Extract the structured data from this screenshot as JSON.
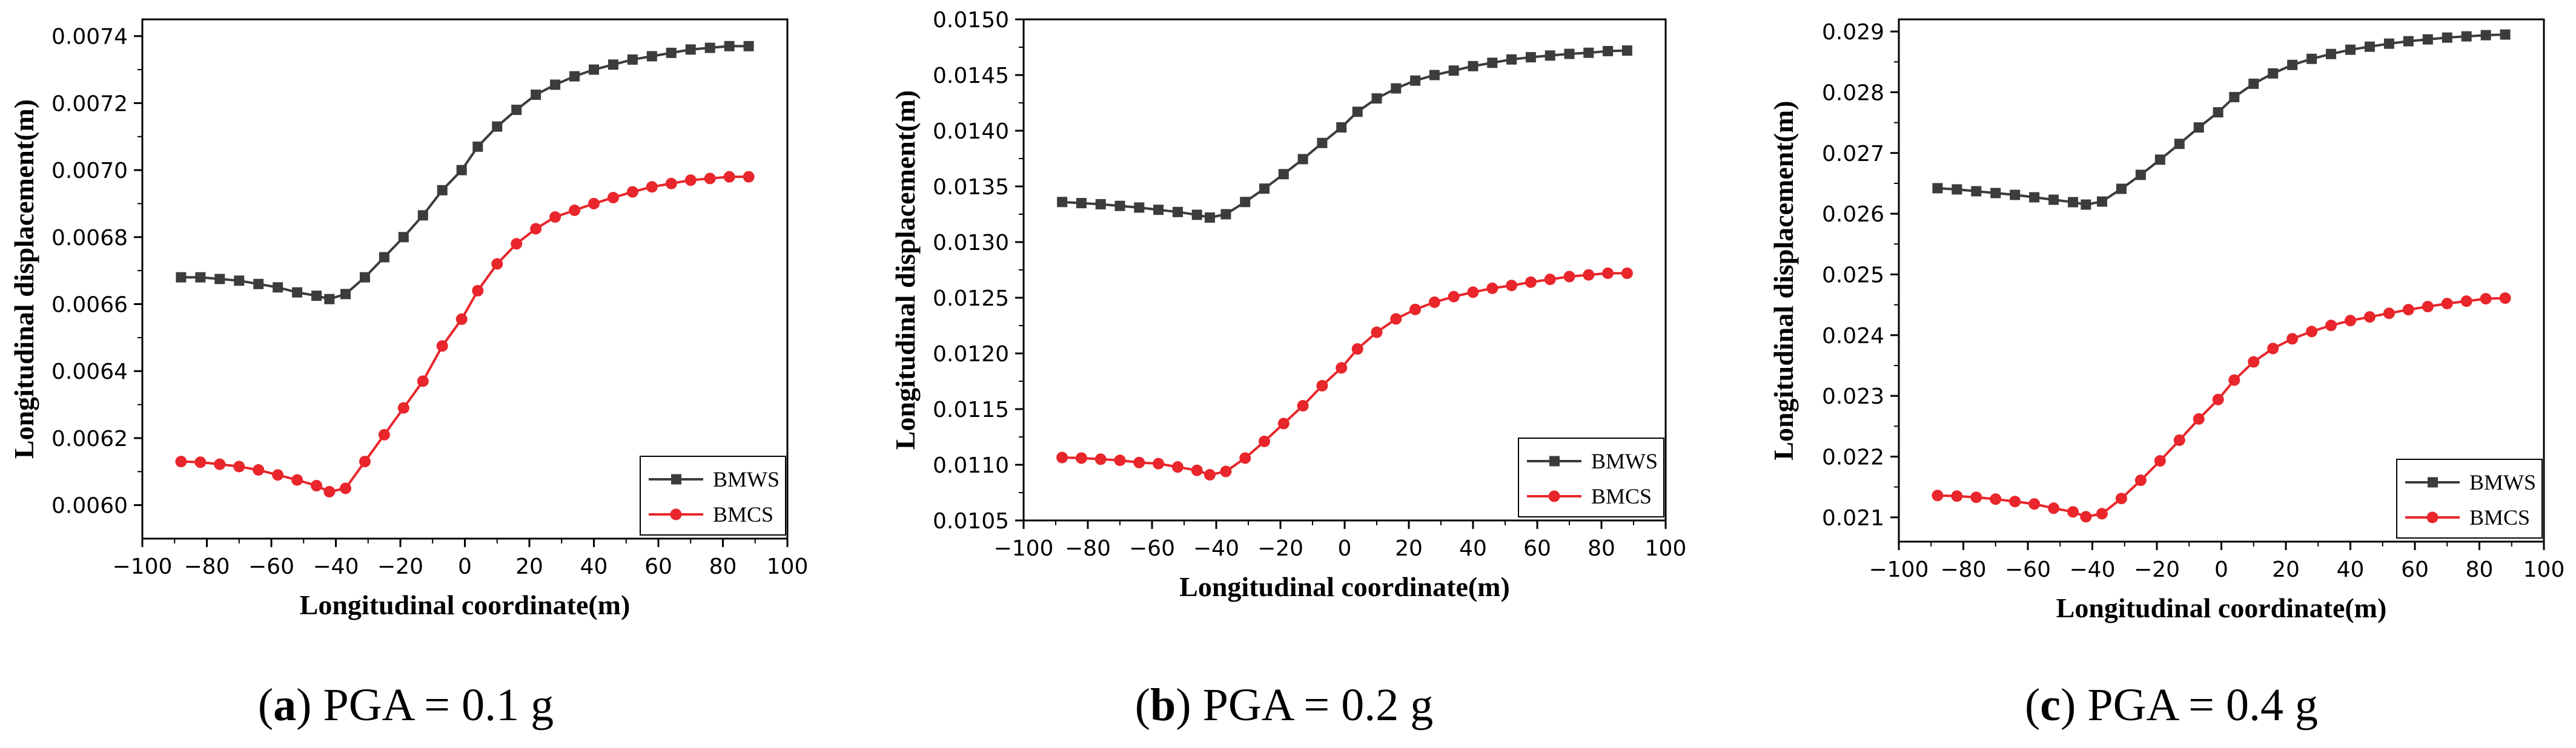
{
  "colors": {
    "series1": "#3c3c3c",
    "series2": "#e8262b",
    "axis": "#000000"
  },
  "chart_data": [
    {
      "type": "line",
      "caption": {
        "label": "a",
        "text": ") PGA = 0.1 g"
      },
      "xlabel": "Longitudinal coordinate(m)",
      "ylabel": "Longitudinal displacement(m)",
      "xlim": [
        -100,
        100
      ],
      "ylim": [
        0.0059,
        0.00745
      ],
      "x_ticks": [
        -100,
        -80,
        -60,
        -40,
        -20,
        0,
        20,
        40,
        60,
        80,
        100
      ],
      "x_tick_labels": [
        "−100",
        "−80",
        "−60",
        "−40",
        "−20",
        "0",
        "20",
        "40",
        "60",
        "80",
        "100"
      ],
      "y_ticks": [
        0.006,
        0.0062,
        0.0064,
        0.0066,
        0.0068,
        0.007,
        0.0072,
        0.0074
      ],
      "y_tick_labels": [
        "0.0060",
        "0.0062",
        "0.0064",
        "0.0066",
        "0.0068",
        "0.0070",
        "0.0072",
        "0.0074"
      ],
      "legend": [
        "BMWS",
        "BMCS"
      ],
      "legend_position": "bottom-right",
      "x": [
        -88,
        -82,
        -76,
        -70,
        -64,
        -58,
        -52,
        -46,
        -42,
        -37,
        -31,
        -25,
        -19,
        -13,
        -7,
        -1,
        4,
        10,
        16,
        22,
        28,
        34,
        40,
        46,
        52,
        58,
        64,
        70,
        76,
        82,
        88
      ],
      "series": [
        {
          "name": "BMWS",
          "values": [
            0.00668,
            0.00668,
            0.006675,
            0.00667,
            0.00666,
            0.00665,
            0.006635,
            0.006625,
            0.006615,
            0.00663,
            0.00668,
            0.00674,
            0.0068,
            0.006865,
            0.00694,
            0.007,
            0.00707,
            0.00713,
            0.00718,
            0.007225,
            0.007255,
            0.00728,
            0.0073,
            0.007315,
            0.00733,
            0.00734,
            0.00735,
            0.00736,
            0.007365,
            0.00737,
            0.00737
          ]
        },
        {
          "name": "BMCS",
          "values": [
            0.00613,
            0.006128,
            0.006122,
            0.006115,
            0.006105,
            0.00609,
            0.006075,
            0.006058,
            0.00604,
            0.00605,
            0.00613,
            0.00621,
            0.00629,
            0.00637,
            0.006475,
            0.006555,
            0.00664,
            0.00672,
            0.00678,
            0.006825,
            0.00686,
            0.00688,
            0.0069,
            0.006918,
            0.006935,
            0.00695,
            0.00696,
            0.00697,
            0.006975,
            0.00698,
            0.00698
          ]
        }
      ]
    },
    {
      "type": "line",
      "caption": {
        "label": "b",
        "text": ") PGA = 0.2 g"
      },
      "xlabel": "Longitudinal coordinate(m)",
      "ylabel": "Longitudinal displacement(m)",
      "xlim": [
        -100,
        100
      ],
      "ylim": [
        0.0105,
        0.015
      ],
      "x_ticks": [
        -100,
        -80,
        -60,
        -40,
        -20,
        0,
        20,
        40,
        60,
        80,
        100
      ],
      "x_tick_labels": [
        "−100",
        "−80",
        "−60",
        "−40",
        "−20",
        "0",
        "20",
        "40",
        "60",
        "80",
        "100"
      ],
      "y_ticks": [
        0.0105,
        0.011,
        0.0115,
        0.012,
        0.0125,
        0.013,
        0.0135,
        0.014,
        0.0145,
        0.015
      ],
      "y_tick_labels": [
        "0.0105",
        "0.0110",
        "0.0115",
        "0.0120",
        "0.0125",
        "0.0130",
        "0.0135",
        "0.0140",
        "0.0145",
        "0.0150"
      ],
      "legend": [
        "BMWS",
        "BMCS"
      ],
      "legend_position": "bottom-right",
      "x": [
        -88,
        -82,
        -76,
        -70,
        -64,
        -58,
        -52,
        -46,
        -42,
        -37,
        -31,
        -25,
        -19,
        -13,
        -7,
        -1,
        4,
        10,
        16,
        22,
        28,
        34,
        40,
        46,
        52,
        58,
        64,
        70,
        76,
        82,
        88
      ],
      "series": [
        {
          "name": "BMWS",
          "values": [
            0.01336,
            0.01335,
            0.01334,
            0.013325,
            0.01331,
            0.01329,
            0.01327,
            0.013245,
            0.01322,
            0.01325,
            0.01336,
            0.01348,
            0.01361,
            0.013745,
            0.01389,
            0.01403,
            0.01417,
            0.01429,
            0.01438,
            0.01445,
            0.0145,
            0.01454,
            0.01458,
            0.01461,
            0.01464,
            0.01466,
            0.014675,
            0.01469,
            0.0147,
            0.014715,
            0.01472
          ]
        },
        {
          "name": "BMCS",
          "values": [
            0.011065,
            0.01106,
            0.01105,
            0.01104,
            0.01102,
            0.01101,
            0.01098,
            0.01095,
            0.01091,
            0.01094,
            0.01106,
            0.01121,
            0.01137,
            0.01153,
            0.01171,
            0.01187,
            0.01204,
            0.01219,
            0.01231,
            0.012395,
            0.01246,
            0.01251,
            0.01255,
            0.012585,
            0.01261,
            0.01264,
            0.012665,
            0.01269,
            0.012705,
            0.01272,
            0.01272
          ]
        }
      ]
    },
    {
      "type": "line",
      "caption": {
        "label": "c",
        "text": ") PGA = 0.4 g"
      },
      "xlabel": "Longitudinal coordinate(m)",
      "ylabel": "Longitudinal displacement(m)",
      "xlim": [
        -100,
        100
      ],
      "ylim": [
        0.0206,
        0.0292
      ],
      "x_ticks": [
        -100,
        -80,
        -60,
        -40,
        -20,
        0,
        20,
        40,
        60,
        80,
        100
      ],
      "x_tick_labels": [
        "−100",
        "−80",
        "−60",
        "−40",
        "−20",
        "0",
        "20",
        "40",
        "60",
        "80",
        "100"
      ],
      "y_ticks": [
        0.021,
        0.022,
        0.023,
        0.024,
        0.025,
        0.026,
        0.027,
        0.028,
        0.029
      ],
      "y_tick_labels": [
        "0.021",
        "0.022",
        "0.023",
        "0.024",
        "0.025",
        "0.026",
        "0.027",
        "0.028",
        "0.029"
      ],
      "legend": [
        "BMWS",
        "BMCS"
      ],
      "legend_position": "bottom-right",
      "x": [
        -88,
        -82,
        -76,
        -70,
        -64,
        -58,
        -52,
        -46,
        -42,
        -37,
        -31,
        -25,
        -19,
        -13,
        -7,
        -1,
        4,
        10,
        16,
        22,
        28,
        34,
        40,
        46,
        52,
        58,
        64,
        70,
        76,
        82,
        88
      ],
      "series": [
        {
          "name": "BMWS",
          "values": [
            0.02642,
            0.0264,
            0.02637,
            0.02634,
            0.02631,
            0.02627,
            0.02623,
            0.02619,
            0.02615,
            0.0262,
            0.02641,
            0.02664,
            0.02689,
            0.02715,
            0.02742,
            0.02767,
            0.02792,
            0.02814,
            0.02831,
            0.02845,
            0.02855,
            0.02863,
            0.0287,
            0.02875,
            0.0288,
            0.02884,
            0.02887,
            0.0289,
            0.02892,
            0.02894,
            0.02895
          ]
        },
        {
          "name": "BMCS",
          "values": [
            0.02136,
            0.02135,
            0.02133,
            0.0213,
            0.02126,
            0.02122,
            0.02115,
            0.02109,
            0.02101,
            0.02106,
            0.02131,
            0.02161,
            0.02193,
            0.02227,
            0.02262,
            0.02294,
            0.02326,
            0.02356,
            0.02378,
            0.02394,
            0.02406,
            0.02416,
            0.02424,
            0.0243,
            0.02436,
            0.02442,
            0.02447,
            0.02452,
            0.02456,
            0.0246,
            0.02461
          ]
        }
      ]
    }
  ]
}
